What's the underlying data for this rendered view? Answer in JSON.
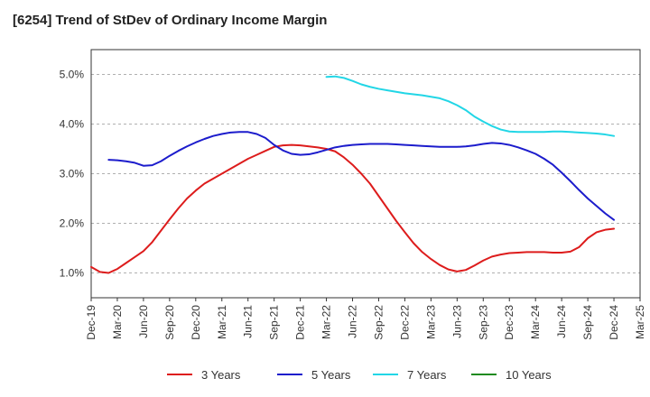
{
  "chart_data": {
    "type": "line",
    "title": "[6254]  Trend of StDev of Ordinary Income Margin",
    "xlabel": "",
    "ylabel": "",
    "x_ticks": [
      "Dec-19",
      "Mar-20",
      "Jun-20",
      "Sep-20",
      "Dec-20",
      "Mar-21",
      "Jun-21",
      "Sep-21",
      "Dec-21",
      "Mar-22",
      "Jun-22",
      "Sep-22",
      "Dec-22",
      "Mar-23",
      "Jun-23",
      "Sep-23",
      "Dec-23",
      "Mar-24",
      "Jun-24",
      "Sep-24",
      "Dec-24",
      "Mar-25"
    ],
    "y_ticks": [
      "1.0%",
      "2.0%",
      "3.0%",
      "4.0%",
      "5.0%"
    ],
    "y_tick_values": [
      1.0,
      2.0,
      3.0,
      4.0,
      5.0
    ],
    "ylim": [
      0.5,
      5.5
    ],
    "grid": "horizontal dashed",
    "legend_position": "bottom",
    "series": [
      {
        "name": "3 Years",
        "color": "#dd1c1c",
        "x": [
          "Dec-19",
          "Jan-20",
          "Feb-20",
          "Mar-20",
          "Apr-20",
          "May-20",
          "Jun-20",
          "Jul-20",
          "Aug-20",
          "Sep-20",
          "Oct-20",
          "Nov-20",
          "Dec-20",
          "Jan-21",
          "Feb-21",
          "Mar-21",
          "Apr-21",
          "May-21",
          "Jun-21",
          "Jul-21",
          "Aug-21",
          "Sep-21",
          "Oct-21",
          "Nov-21",
          "Dec-21",
          "Jan-22",
          "Feb-22",
          "Mar-22",
          "Apr-22",
          "May-22",
          "Jun-22",
          "Jul-22",
          "Aug-22",
          "Sep-22",
          "Oct-22",
          "Nov-22",
          "Dec-22",
          "Jan-23",
          "Feb-23",
          "Mar-23",
          "Apr-23",
          "May-23",
          "Jun-23",
          "Jul-23",
          "Aug-23",
          "Sep-23",
          "Oct-23",
          "Nov-23",
          "Dec-23",
          "Jan-24",
          "Feb-24",
          "Mar-24",
          "Apr-24",
          "May-24",
          "Jun-24",
          "Jul-24",
          "Aug-24",
          "Sep-24",
          "Oct-24",
          "Nov-24",
          "Dec-24"
        ],
        "values": [
          1.12,
          1.02,
          1.0,
          1.08,
          1.2,
          1.32,
          1.44,
          1.62,
          1.85,
          2.08,
          2.3,
          2.5,
          2.66,
          2.8,
          2.9,
          3.0,
          3.1,
          3.2,
          3.3,
          3.38,
          3.46,
          3.54,
          3.57,
          3.58,
          3.57,
          3.55,
          3.53,
          3.5,
          3.45,
          3.33,
          3.18,
          3.0,
          2.8,
          2.55,
          2.3,
          2.05,
          1.82,
          1.6,
          1.42,
          1.28,
          1.16,
          1.07,
          1.03,
          1.06,
          1.15,
          1.25,
          1.33,
          1.37,
          1.4,
          1.41,
          1.42,
          1.42,
          1.42,
          1.41,
          1.41,
          1.43,
          1.52,
          1.7,
          1.82,
          1.87,
          1.89
        ]
      },
      {
        "name": "5 Years",
        "color": "#1c1ccc",
        "x": [
          "Dec-19",
          "Jan-20",
          "Feb-20",
          "Mar-20",
          "Apr-20",
          "May-20",
          "Jun-20",
          "Jul-20",
          "Aug-20",
          "Sep-20",
          "Oct-20",
          "Nov-20",
          "Dec-20",
          "Jan-21",
          "Feb-21",
          "Mar-21",
          "Apr-21",
          "May-21",
          "Jun-21",
          "Jul-21",
          "Aug-21",
          "Sep-21",
          "Oct-21",
          "Nov-21",
          "Dec-21",
          "Jan-22",
          "Feb-22",
          "Mar-22",
          "Apr-22",
          "May-22",
          "Jun-22",
          "Jul-22",
          "Aug-22",
          "Sep-22",
          "Oct-22",
          "Nov-22",
          "Dec-22",
          "Jan-23",
          "Feb-23",
          "Mar-23",
          "Apr-23",
          "May-23",
          "Jun-23",
          "Jul-23",
          "Aug-23",
          "Sep-23",
          "Oct-23",
          "Nov-23",
          "Dec-23",
          "Jan-24",
          "Feb-24",
          "Mar-24",
          "Apr-24",
          "May-24",
          "Jun-24",
          "Jul-24",
          "Aug-24",
          "Sep-24",
          "Oct-24",
          "Nov-24",
          "Dec-24"
        ],
        "values": [
          null,
          null,
          3.28,
          3.27,
          3.25,
          3.22,
          3.16,
          3.17,
          3.25,
          3.36,
          3.46,
          3.55,
          3.63,
          3.7,
          3.76,
          3.8,
          3.83,
          3.84,
          3.84,
          3.8,
          3.72,
          3.58,
          3.47,
          3.4,
          3.38,
          3.39,
          3.43,
          3.48,
          3.53,
          3.56,
          3.58,
          3.59,
          3.6,
          3.6,
          3.6,
          3.59,
          3.58,
          3.57,
          3.56,
          3.55,
          3.54,
          3.54,
          3.54,
          3.55,
          3.57,
          3.6,
          3.62,
          3.61,
          3.58,
          3.53,
          3.47,
          3.4,
          3.3,
          3.18,
          3.02,
          2.85,
          2.67,
          2.5,
          2.35,
          2.2,
          2.07
        ]
      },
      {
        "name": "7 Years",
        "color": "#22d6e6",
        "x": [
          "Dec-19",
          "Jan-20",
          "Feb-20",
          "Mar-20",
          "Apr-20",
          "May-20",
          "Jun-20",
          "Jul-20",
          "Aug-20",
          "Sep-20",
          "Oct-20",
          "Nov-20",
          "Dec-20",
          "Jan-21",
          "Feb-21",
          "Mar-21",
          "Apr-21",
          "May-21",
          "Jun-21",
          "Jul-21",
          "Aug-21",
          "Sep-21",
          "Oct-21",
          "Nov-21",
          "Dec-21",
          "Jan-22",
          "Feb-22",
          "Mar-22",
          "Apr-22",
          "May-22",
          "Jun-22",
          "Jul-22",
          "Aug-22",
          "Sep-22",
          "Oct-22",
          "Nov-22",
          "Dec-22",
          "Jan-23",
          "Feb-23",
          "Mar-23",
          "Apr-23",
          "May-23",
          "Jun-23",
          "Jul-23",
          "Aug-23",
          "Sep-23",
          "Oct-23",
          "Nov-23",
          "Dec-23",
          "Jan-24",
          "Feb-24",
          "Mar-24",
          "Apr-24",
          "May-24",
          "Jun-24",
          "Jul-24",
          "Aug-24",
          "Sep-24",
          "Oct-24",
          "Nov-24",
          "Dec-24"
        ],
        "values": [
          null,
          null,
          null,
          null,
          null,
          null,
          null,
          null,
          null,
          null,
          null,
          null,
          null,
          null,
          null,
          null,
          null,
          null,
          null,
          null,
          null,
          null,
          null,
          null,
          null,
          null,
          null,
          4.95,
          4.96,
          4.93,
          4.87,
          4.8,
          4.75,
          4.71,
          4.68,
          4.65,
          4.62,
          4.6,
          4.58,
          4.55,
          4.52,
          4.46,
          4.38,
          4.28,
          4.15,
          4.05,
          3.96,
          3.89,
          3.85,
          3.84,
          3.84,
          3.84,
          3.84,
          3.85,
          3.85,
          3.84,
          3.83,
          3.82,
          3.81,
          3.79,
          3.76
        ]
      },
      {
        "name": "10 Years",
        "color": "#1f8a1f",
        "x": [],
        "values": []
      }
    ]
  }
}
